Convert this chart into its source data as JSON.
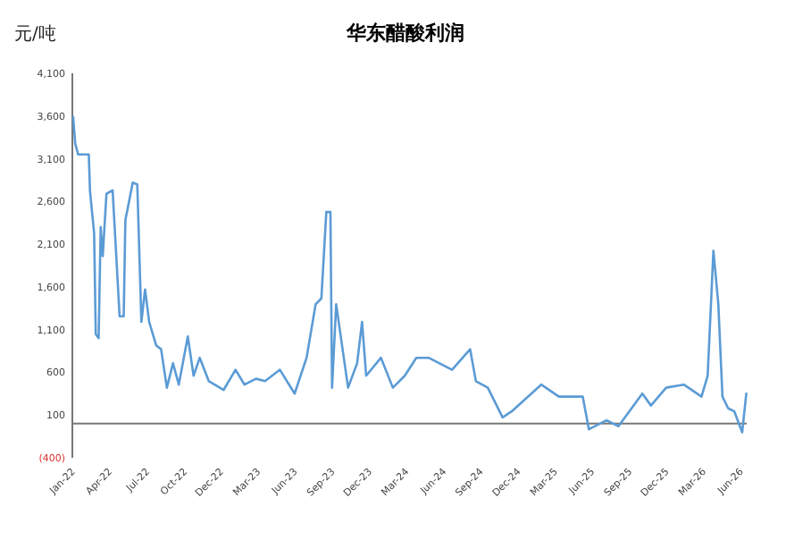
{
  "chart_data": {
    "type": "line",
    "title": "华东醋酸利润",
    "ylabel": "元/吨",
    "x": [
      "2021-12-26",
      "2021-12-31",
      "2022-01-07",
      "2022-02-02",
      "2022-02-05",
      "2022-02-15",
      "2022-02-19",
      "2022-02-26",
      "2022-03-03",
      "2022-03-08",
      "2022-03-17",
      "2022-04-01",
      "2022-04-06",
      "2022-04-18",
      "2022-04-28",
      "2022-05-02",
      "2022-05-20",
      "2022-05-31",
      "2022-06-10",
      "2022-06-19",
      "2022-06-29",
      "2022-07-16",
      "2022-07-28",
      "2022-08-11",
      "2022-08-26",
      "2022-09-09",
      "2022-10-01",
      "2022-10-15",
      "2022-10-30",
      "2022-11-21",
      "2022-12-27",
      "2023-01-25",
      "2023-02-16",
      "2023-03-16",
      "2023-04-07",
      "2023-05-13",
      "2023-06-18",
      "2023-07-17",
      "2023-08-08",
      "2023-08-22",
      "2023-09-03",
      "2023-09-13",
      "2023-09-17",
      "2023-09-27",
      "2023-10-26",
      "2023-11-17",
      "2023-11-29",
      "2023-12-09",
      "2024-01-14",
      "2024-02-12",
      "2024-03-12",
      "2024-04-09",
      "2024-05-09",
      "2024-07-05",
      "2024-08-18",
      "2024-09-01",
      "2024-09-30",
      "2024-11-05",
      "2024-11-27",
      "2025-02-07",
      "2025-03-22",
      "2025-05-19",
      "2025-06-03",
      "2025-07-16",
      "2025-08-14",
      "2025-10-11",
      "2025-11-01",
      "2025-12-08",
      "2026-01-20",
      "2026-03-04",
      "2026-03-19",
      "2026-04-02",
      "2026-04-14",
      "2026-04-24",
      "2026-05-08",
      "2026-05-23",
      "2026-06-11",
      "2026-06-21"
    ],
    "series": [
      {
        "color": "#5b9bd5",
        "values": [
          3590,
          3277,
          3150,
          3150,
          2720,
          2230,
          1047,
          1000,
          2300,
          1960,
          2690,
          2730,
          2300,
          1256,
          1256,
          2380,
          2820,
          2800,
          1190,
          1570,
          1190,
          915,
          870,
          420,
          706,
          456,
          1020,
          560,
          770,
          497,
          393,
          630,
          456,
          525,
          497,
          630,
          351,
          770,
          1396,
          1465,
          2477,
          2477,
          420,
          1396,
          420,
          706,
          1190,
          560,
          770,
          420,
          560,
          770,
          770,
          630,
          870,
          497,
          420,
          73,
          142,
          456,
          316,
          316,
          -67,
          38,
          -31,
          351,
          211,
          420,
          456,
          316,
          560,
          2023,
          1396,
          316,
          178,
          142,
          -102,
          351
        ]
      }
    ],
    "xlim": [
      "2021-12-24",
      "2026-06-22"
    ],
    "xticks": [
      {
        "value": "2022-01-01",
        "label": "Jan-22"
      },
      {
        "value": "2022-04-01",
        "label": "Apr-22"
      },
      {
        "value": "2022-07-01",
        "label": "Jul-22"
      },
      {
        "value": "2022-10-01",
        "label": "Oct-22"
      },
      {
        "value": "2022-12-28",
        "label": "Dec-22"
      },
      {
        "value": "2023-03-28",
        "label": "Mar-23"
      },
      {
        "value": "2023-06-26",
        "label": "Jun-23"
      },
      {
        "value": "2023-09-25",
        "label": "Sep-23"
      },
      {
        "value": "2023-12-24",
        "label": "Dec-23"
      },
      {
        "value": "2024-03-23",
        "label": "Mar-24"
      },
      {
        "value": "2024-06-22",
        "label": "Jun-24"
      },
      {
        "value": "2024-09-20",
        "label": "Sep-24"
      },
      {
        "value": "2024-12-20",
        "label": "Dec-24"
      },
      {
        "value": "2025-03-20",
        "label": "Mar-25"
      },
      {
        "value": "2025-06-18",
        "label": "Jun-25"
      },
      {
        "value": "2025-09-17",
        "label": "Sep-25"
      },
      {
        "value": "2025-12-16",
        "label": "Dec-25"
      },
      {
        "value": "2026-03-16",
        "label": "Mar-26"
      },
      {
        "value": "2026-06-15",
        "label": "Jun-26"
      }
    ],
    "ylim": [
      -400,
      4100
    ],
    "yticks": [
      {
        "value": 4100,
        "label": "4,100"
      },
      {
        "value": 3600,
        "label": "3,600"
      },
      {
        "value": 3100,
        "label": "3,100"
      },
      {
        "value": 2600,
        "label": "2,600"
      },
      {
        "value": 2100,
        "label": "2,100"
      },
      {
        "value": 1600,
        "label": "1,600"
      },
      {
        "value": 1100,
        "label": "1,100"
      },
      600,
      100,
      {
        "value": -400,
        "label": "(400)"
      }
    ]
  }
}
